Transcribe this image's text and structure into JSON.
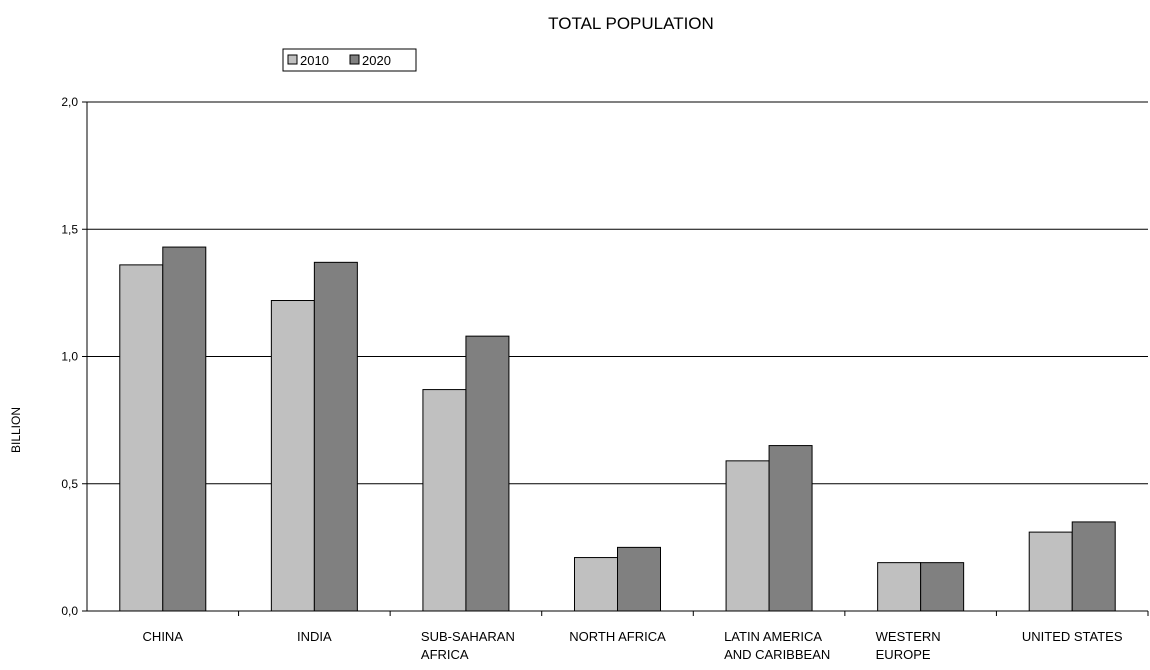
{
  "chart_data": {
    "type": "bar",
    "title": "TOTAL POPULATION",
    "xlabel": "",
    "ylabel": "BILLION",
    "ylim": [
      0,
      2.0
    ],
    "yticks": [
      "0,0",
      "0,5",
      "1,0",
      "1,5",
      "2,0"
    ],
    "ytick_values": [
      0,
      0.5,
      1.0,
      1.5,
      2.0
    ],
    "grid": "horizontal",
    "legend_placement": "top-left",
    "categories": [
      [
        "CHINA"
      ],
      [
        "INDIA"
      ],
      [
        "SUB-SAHARAN",
        "AFRICA"
      ],
      [
        "NORTH AFRICA"
      ],
      [
        "LATIN AMERICA",
        "AND CARIBBEAN"
      ],
      [
        "WESTERN",
        "EUROPE"
      ],
      [
        "UNITED STATES"
      ]
    ],
    "series": [
      {
        "name": "2010",
        "color": "#c0c0c0",
        "values": [
          1.36,
          1.22,
          0.87,
          0.21,
          0.59,
          0.19,
          0.31
        ]
      },
      {
        "name": "2020",
        "color": "#808080",
        "values": [
          1.43,
          1.37,
          1.08,
          0.25,
          0.65,
          0.19,
          0.35
        ]
      }
    ]
  }
}
